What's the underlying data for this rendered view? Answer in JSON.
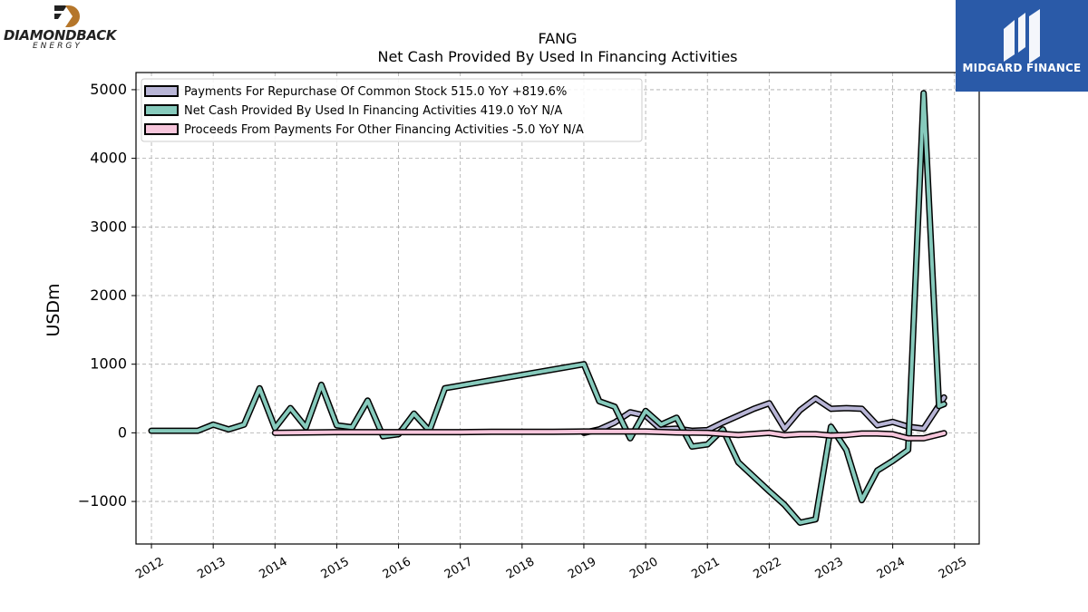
{
  "logos": {
    "left_name": "DIAMONDBACK",
    "left_sub": "ENERGY",
    "right_name": "MIDGARD FINANCE",
    "left_accent": "#b5762a",
    "right_bg": "#2a5aa8"
  },
  "chart_data": {
    "type": "line",
    "title": "FANG",
    "subtitle": "Net Cash Provided By Used In Financing Activities",
    "xlabel": "",
    "ylabel": "USDm",
    "xlim": [
      2011.75,
      2025.4
    ],
    "ylim": [
      -1620,
      5250
    ],
    "x_ticks": [
      2012,
      2013,
      2014,
      2015,
      2016,
      2017,
      2018,
      2019,
      2020,
      2021,
      2022,
      2023,
      2024,
      2025
    ],
    "y_ticks": [
      -1000,
      0,
      1000,
      2000,
      3000,
      4000,
      5000
    ],
    "y_tick_labels": [
      "−1000",
      "0",
      "1000",
      "2000",
      "3000",
      "4000",
      "5000"
    ],
    "grid": true,
    "legend_position": "top-left",
    "series": [
      {
        "name": "Payments For Repurchase Of Common Stock  515.0 YoY +819.6%",
        "color": "#b8b5d6",
        "x": [
          2019.0,
          2019.25,
          2019.5,
          2019.75,
          2020.0,
          2020.25,
          2020.5,
          2020.75,
          2021.0,
          2021.25,
          2021.5,
          2021.75,
          2022.0,
          2022.25,
          2022.5,
          2022.75,
          2023.0,
          2023.25,
          2023.5,
          2023.75,
          2024.0,
          2024.25,
          2024.5,
          2024.75,
          2024.83
        ],
        "y": [
          0,
          50,
          150,
          300,
          250,
          50,
          60,
          30,
          40,
          150,
          250,
          350,
          430,
          60,
          330,
          500,
          350,
          360,
          350,
          110,
          160,
          90,
          60,
          400,
          515
        ]
      },
      {
        "name": "Net Cash Provided By Used In Financing Activities  419.0 YoY N/A",
        "color": "#86cabc",
        "x": [
          2012.0,
          2012.25,
          2012.5,
          2012.75,
          2013.0,
          2013.25,
          2013.5,
          2013.75,
          2014.0,
          2014.25,
          2014.5,
          2014.75,
          2015.0,
          2015.25,
          2015.5,
          2015.75,
          2016.0,
          2016.25,
          2016.5,
          2016.75,
          2019.0,
          2019.25,
          2019.5,
          2019.75,
          2020.0,
          2020.25,
          2020.5,
          2020.75,
          2021.0,
          2021.25,
          2021.5,
          2022.0,
          2022.25,
          2022.5,
          2022.75,
          2023.0,
          2023.25,
          2023.5,
          2023.75,
          2024.0,
          2024.25,
          2024.5,
          2024.75,
          2024.83
        ],
        "y": [
          30,
          30,
          30,
          30,
          120,
          50,
          120,
          650,
          70,
          360,
          80,
          700,
          110,
          80,
          470,
          -50,
          -20,
          280,
          30,
          650,
          1000,
          460,
          380,
          -80,
          320,
          120,
          220,
          -200,
          -170,
          50,
          -430,
          -850,
          -1050,
          -1310,
          -1260,
          90,
          -250,
          -980,
          -550,
          -410,
          -250,
          4950,
          390,
          419
        ]
      },
      {
        "name": "Proceeds From Payments For Other Financing Activities  -5.0 YoY N/A",
        "color": "#f7c6dc",
        "x": [
          2014.0,
          2014.5,
          2015.0,
          2015.5,
          2016.0,
          2016.5,
          2017.0,
          2017.5,
          2018.0,
          2018.5,
          2019.0,
          2019.5,
          2020.0,
          2020.5,
          2021.0,
          2021.5,
          2022.0,
          2022.25,
          2022.5,
          2022.75,
          2023.0,
          2023.25,
          2023.5,
          2023.75,
          2024.0,
          2024.25,
          2024.5,
          2024.83
        ],
        "y": [
          0,
          5,
          10,
          10,
          10,
          10,
          10,
          15,
          15,
          15,
          20,
          20,
          20,
          5,
          0,
          -30,
          0,
          -35,
          -20,
          -20,
          -40,
          -30,
          -10,
          -10,
          -20,
          -80,
          -80,
          -5
        ]
      }
    ]
  }
}
